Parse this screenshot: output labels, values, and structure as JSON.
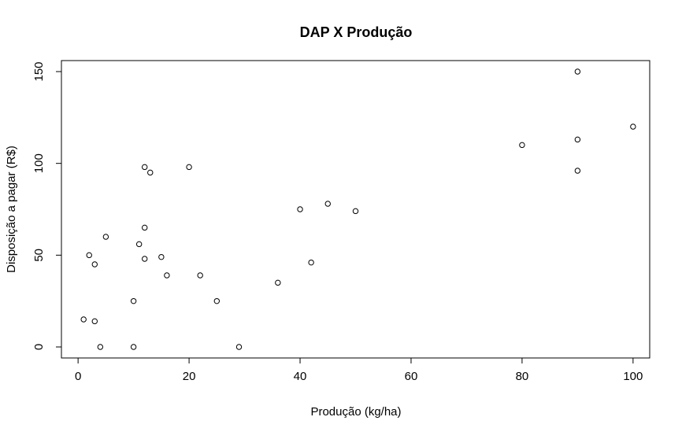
{
  "chart_data": {
    "type": "scatter",
    "title": "DAP X Produção",
    "xlabel": "Produção (kg/ha)",
    "ylabel": "Disposição a pagar (R$)",
    "xlim": [
      -3,
      103
    ],
    "ylim": [
      -6,
      156
    ],
    "xticks": [
      0,
      20,
      40,
      60,
      80,
      100
    ],
    "yticks": [
      0,
      50,
      100,
      150
    ],
    "grid": false,
    "legend": "none",
    "marker": "open-circle",
    "colors": {
      "marker": "#000000",
      "frame": "#000000",
      "background": "#ffffff"
    },
    "points": [
      {
        "x": 1,
        "y": 15
      },
      {
        "x": 2,
        "y": 50
      },
      {
        "x": 3,
        "y": 45
      },
      {
        "x": 3,
        "y": 14
      },
      {
        "x": 4,
        "y": 0
      },
      {
        "x": 5,
        "y": 60
      },
      {
        "x": 10,
        "y": 25
      },
      {
        "x": 10,
        "y": 0
      },
      {
        "x": 11,
        "y": 56
      },
      {
        "x": 12,
        "y": 98
      },
      {
        "x": 12,
        "y": 65
      },
      {
        "x": 12,
        "y": 48
      },
      {
        "x": 13,
        "y": 95
      },
      {
        "x": 15,
        "y": 49
      },
      {
        "x": 16,
        "y": 39
      },
      {
        "x": 20,
        "y": 98
      },
      {
        "x": 22,
        "y": 39
      },
      {
        "x": 25,
        "y": 25
      },
      {
        "x": 29,
        "y": 0
      },
      {
        "x": 36,
        "y": 35
      },
      {
        "x": 40,
        "y": 75
      },
      {
        "x": 42,
        "y": 46
      },
      {
        "x": 45,
        "y": 78
      },
      {
        "x": 50,
        "y": 74
      },
      {
        "x": 80,
        "y": 110
      },
      {
        "x": 90,
        "y": 150
      },
      {
        "x": 90,
        "y": 113
      },
      {
        "x": 90,
        "y": 96
      },
      {
        "x": 100,
        "y": 120
      }
    ]
  }
}
